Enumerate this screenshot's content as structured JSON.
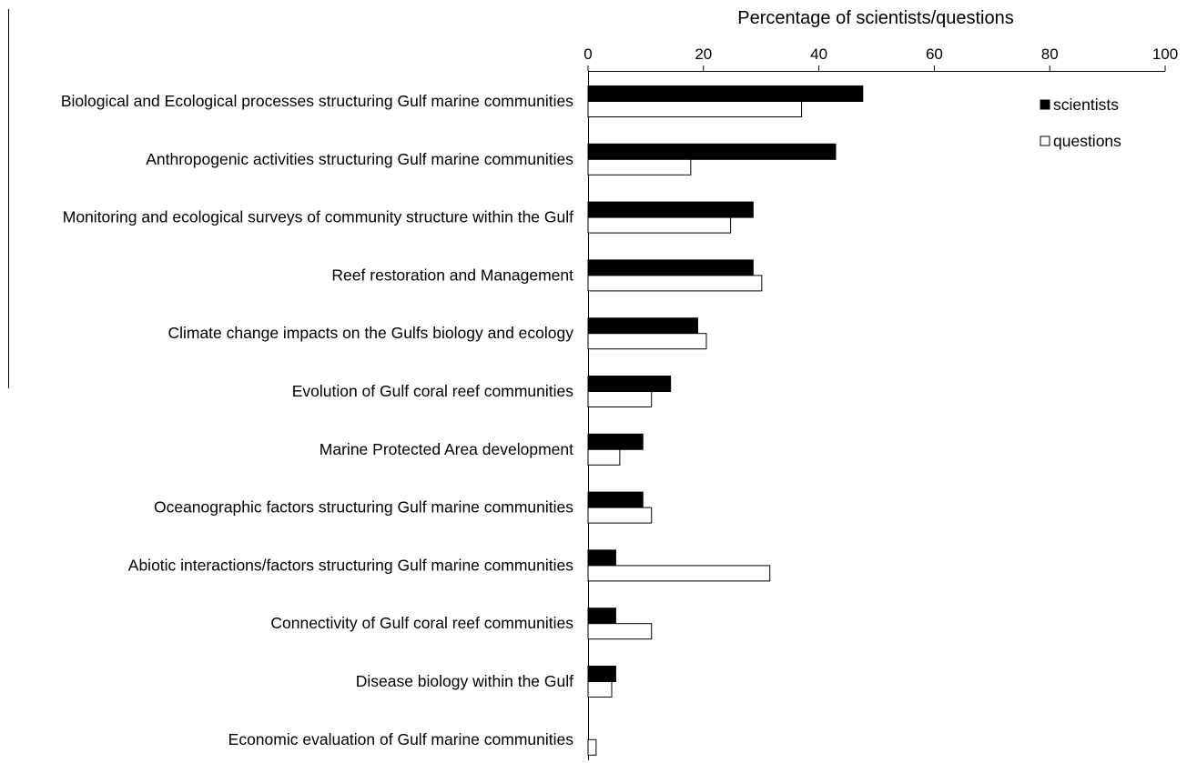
{
  "chart_data": {
    "type": "bar",
    "orientation": "horizontal",
    "xlabel": "Percentage  of scientists/questions",
    "xlim": [
      0,
      100
    ],
    "x_ticks": [
      0,
      20,
      40,
      60,
      80,
      100
    ],
    "x_axis_position": "top",
    "grid": false,
    "legend_position": "top-right",
    "categories": [
      "Biological and Ecological processes structuring Gulf marine communities",
      "Anthropogenic activities structuring Gulf marine communities",
      "Monitoring and ecological surveys of community structure within the Gulf",
      "Reef restoration and Management",
      "Climate change impacts on the Gulfs biology and ecology",
      "Evolution of Gulf coral reef communities",
      "Marine Protected Area development",
      "Oceanographic factors structuring Gulf marine communities",
      "Abiotic interactions/factors structuring Gulf marine communities",
      "Connectivity of Gulf coral reef communities",
      "Disease biology within the Gulf",
      "Economic evaluation of Gulf marine communities"
    ],
    "series": [
      {
        "name": "scientists",
        "color": "#000000",
        "values": [
          47.6,
          42.9,
          28.6,
          28.6,
          19.0,
          14.3,
          9.5,
          9.5,
          4.8,
          4.8,
          4.8,
          0
        ]
      },
      {
        "name": "questions",
        "color": "#ffffff",
        "values": [
          37.0,
          17.8,
          24.7,
          30.1,
          20.5,
          11.0,
          5.5,
          11.0,
          31.5,
          11.0,
          4.1,
          1.4
        ]
      }
    ]
  }
}
